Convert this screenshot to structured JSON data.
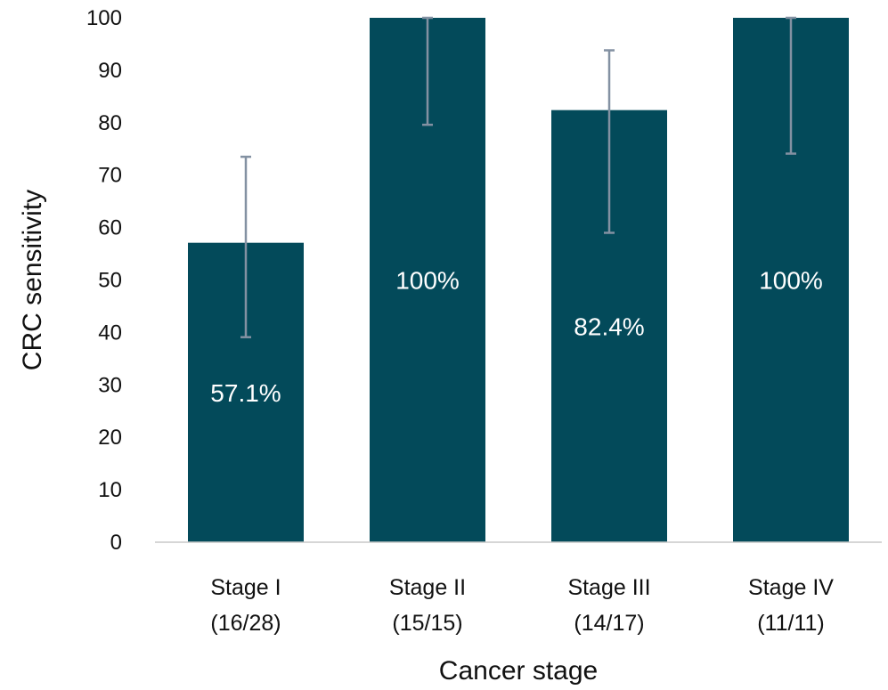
{
  "chart_data": {
    "type": "bar",
    "categories": [
      [
        "Stage I",
        "(16/28)"
      ],
      [
        "Stage II",
        "(15/15)"
      ],
      [
        "Stage III",
        "(14/17)"
      ],
      [
        "Stage IV",
        "(11/11)"
      ]
    ],
    "values": [
      57.1,
      100,
      82.4,
      100
    ],
    "data_labels": [
      "57.1%",
      "100%",
      "82.4%",
      "100%"
    ],
    "error_bars": [
      {
        "low": 39.1,
        "high": 73.5
      },
      {
        "low": 79.6,
        "high": 100
      },
      {
        "low": 59.0,
        "high": 93.8
      },
      {
        "low": 74.1,
        "high": 100
      }
    ],
    "xlabel": "Cancer stage",
    "ylabel": "CRC sensitivity",
    "ylim": [
      0,
      100
    ],
    "yticks": [
      0,
      10,
      20,
      30,
      40,
      50,
      60,
      70,
      80,
      90,
      100
    ],
    "grid": false,
    "colors": {
      "bar": "#034a5a",
      "error_bar": "#8391a2",
      "axis": "#c9c9c9",
      "data_label": "#ffffff"
    }
  }
}
